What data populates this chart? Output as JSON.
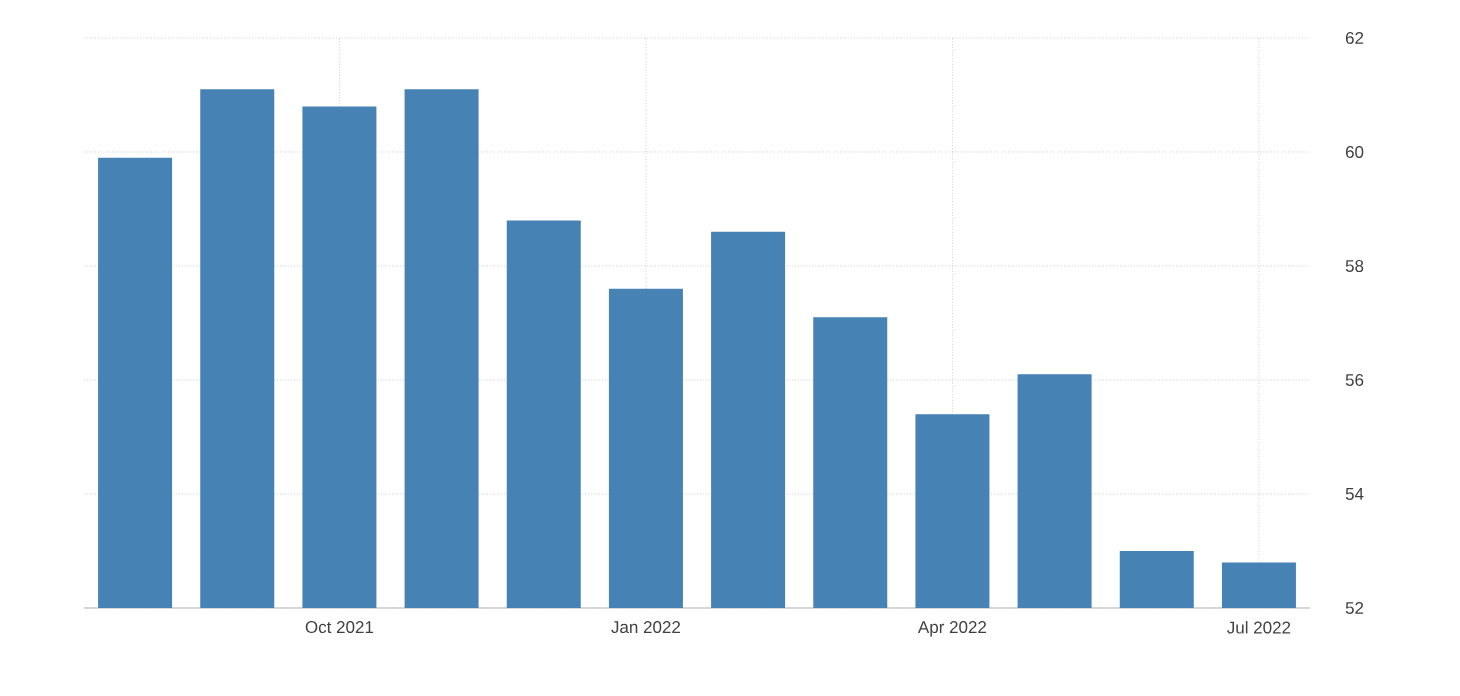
{
  "chart_data": {
    "type": "bar",
    "categories": [
      null,
      null,
      "Oct 2021",
      null,
      null,
      "Jan 2022",
      null,
      null,
      "Apr 2022",
      null,
      null,
      "Jul 2022"
    ],
    "values": [
      59.9,
      61.1,
      60.8,
      61.1,
      58.8,
      57.6,
      58.6,
      57.1,
      55.4,
      56.1,
      53.0,
      52.8
    ],
    "color": "#4682b4",
    "ylim": [
      52,
      62
    ],
    "yticks": [
      52,
      54,
      56,
      58,
      60,
      62
    ],
    "grid": true
  }
}
